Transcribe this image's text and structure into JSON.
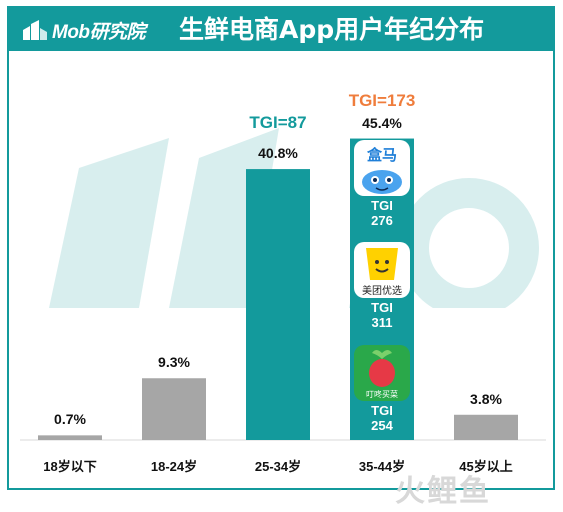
{
  "header": {
    "logo_text": "Mob研究院",
    "title": "生鲜电商App用户年纪分布"
  },
  "colors": {
    "teal": "#139a9c",
    "gray": "#a6a6a6",
    "orange": "#ef7d3c"
  },
  "chart_data": {
    "type": "bar",
    "title": "生鲜电商App用户年纪分布",
    "categories": [
      "18岁以下",
      "18-24岁",
      "25-34岁",
      "35-44岁",
      "45岁以上"
    ],
    "values": [
      0.7,
      9.3,
      40.8,
      45.4,
      3.8
    ],
    "value_labels": [
      "0.7%",
      "9.3%",
      "40.8%",
      "45.4%",
      "3.8%"
    ],
    "highlight": [
      false,
      false,
      true,
      true,
      false
    ],
    "ylim": [
      0,
      50
    ],
    "grid": false,
    "annotations": {
      "tgi_25_34": "TGI=87",
      "tgi_35_44": "TGI=173",
      "brands_35_44": [
        {
          "icon": "hema-app-icon",
          "icon_text": "盒马",
          "tgi_label": "TGI",
          "tgi_value": "276"
        },
        {
          "icon": "meituan-youxuan-app-icon",
          "icon_text": "美团优选",
          "tgi_label": "TGI",
          "tgi_value": "311"
        },
        {
          "icon": "dingdong-maicai-app-icon",
          "icon_text": "叮咚买菜",
          "tgi_label": "TGI",
          "tgi_value": "254"
        }
      ]
    }
  },
  "footer": {
    "watermark_text": "火鲤鱼"
  }
}
